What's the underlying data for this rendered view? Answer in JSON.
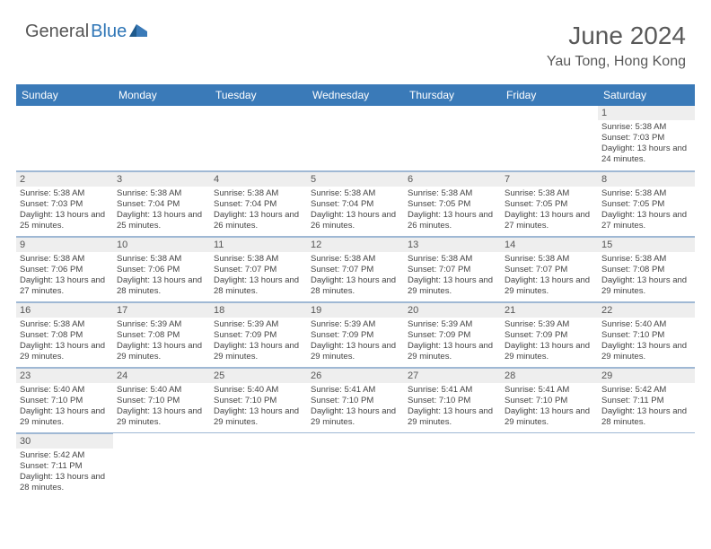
{
  "brand": {
    "part1": "General",
    "part2": "Blue"
  },
  "title": {
    "month": "June 2024",
    "location": "Yau Tong, Hong Kong"
  },
  "colors": {
    "header_bg": "#3a7ab8",
    "header_text": "#ffffff",
    "daynum_bg": "#eeeeee",
    "text": "#444444",
    "title_color": "#595959",
    "row_border": "#9fb8d4"
  },
  "day_headers": [
    "Sunday",
    "Monday",
    "Tuesday",
    "Wednesday",
    "Thursday",
    "Friday",
    "Saturday"
  ],
  "weeks": [
    [
      null,
      null,
      null,
      null,
      null,
      null,
      {
        "num": "1",
        "sunrise": "Sunrise: 5:38 AM",
        "sunset": "Sunset: 7:03 PM",
        "daylight": "Daylight: 13 hours and 24 minutes."
      }
    ],
    [
      {
        "num": "2",
        "sunrise": "Sunrise: 5:38 AM",
        "sunset": "Sunset: 7:03 PM",
        "daylight": "Daylight: 13 hours and 25 minutes."
      },
      {
        "num": "3",
        "sunrise": "Sunrise: 5:38 AM",
        "sunset": "Sunset: 7:04 PM",
        "daylight": "Daylight: 13 hours and 25 minutes."
      },
      {
        "num": "4",
        "sunrise": "Sunrise: 5:38 AM",
        "sunset": "Sunset: 7:04 PM",
        "daylight": "Daylight: 13 hours and 26 minutes."
      },
      {
        "num": "5",
        "sunrise": "Sunrise: 5:38 AM",
        "sunset": "Sunset: 7:04 PM",
        "daylight": "Daylight: 13 hours and 26 minutes."
      },
      {
        "num": "6",
        "sunrise": "Sunrise: 5:38 AM",
        "sunset": "Sunset: 7:05 PM",
        "daylight": "Daylight: 13 hours and 26 minutes."
      },
      {
        "num": "7",
        "sunrise": "Sunrise: 5:38 AM",
        "sunset": "Sunset: 7:05 PM",
        "daylight": "Daylight: 13 hours and 27 minutes."
      },
      {
        "num": "8",
        "sunrise": "Sunrise: 5:38 AM",
        "sunset": "Sunset: 7:05 PM",
        "daylight": "Daylight: 13 hours and 27 minutes."
      }
    ],
    [
      {
        "num": "9",
        "sunrise": "Sunrise: 5:38 AM",
        "sunset": "Sunset: 7:06 PM",
        "daylight": "Daylight: 13 hours and 27 minutes."
      },
      {
        "num": "10",
        "sunrise": "Sunrise: 5:38 AM",
        "sunset": "Sunset: 7:06 PM",
        "daylight": "Daylight: 13 hours and 28 minutes."
      },
      {
        "num": "11",
        "sunrise": "Sunrise: 5:38 AM",
        "sunset": "Sunset: 7:07 PM",
        "daylight": "Daylight: 13 hours and 28 minutes."
      },
      {
        "num": "12",
        "sunrise": "Sunrise: 5:38 AM",
        "sunset": "Sunset: 7:07 PM",
        "daylight": "Daylight: 13 hours and 28 minutes."
      },
      {
        "num": "13",
        "sunrise": "Sunrise: 5:38 AM",
        "sunset": "Sunset: 7:07 PM",
        "daylight": "Daylight: 13 hours and 29 minutes."
      },
      {
        "num": "14",
        "sunrise": "Sunrise: 5:38 AM",
        "sunset": "Sunset: 7:07 PM",
        "daylight": "Daylight: 13 hours and 29 minutes."
      },
      {
        "num": "15",
        "sunrise": "Sunrise: 5:38 AM",
        "sunset": "Sunset: 7:08 PM",
        "daylight": "Daylight: 13 hours and 29 minutes."
      }
    ],
    [
      {
        "num": "16",
        "sunrise": "Sunrise: 5:38 AM",
        "sunset": "Sunset: 7:08 PM",
        "daylight": "Daylight: 13 hours and 29 minutes."
      },
      {
        "num": "17",
        "sunrise": "Sunrise: 5:39 AM",
        "sunset": "Sunset: 7:08 PM",
        "daylight": "Daylight: 13 hours and 29 minutes."
      },
      {
        "num": "18",
        "sunrise": "Sunrise: 5:39 AM",
        "sunset": "Sunset: 7:09 PM",
        "daylight": "Daylight: 13 hours and 29 minutes."
      },
      {
        "num": "19",
        "sunrise": "Sunrise: 5:39 AM",
        "sunset": "Sunset: 7:09 PM",
        "daylight": "Daylight: 13 hours and 29 minutes."
      },
      {
        "num": "20",
        "sunrise": "Sunrise: 5:39 AM",
        "sunset": "Sunset: 7:09 PM",
        "daylight": "Daylight: 13 hours and 29 minutes."
      },
      {
        "num": "21",
        "sunrise": "Sunrise: 5:39 AM",
        "sunset": "Sunset: 7:09 PM",
        "daylight": "Daylight: 13 hours and 29 minutes."
      },
      {
        "num": "22",
        "sunrise": "Sunrise: 5:40 AM",
        "sunset": "Sunset: 7:10 PM",
        "daylight": "Daylight: 13 hours and 29 minutes."
      }
    ],
    [
      {
        "num": "23",
        "sunrise": "Sunrise: 5:40 AM",
        "sunset": "Sunset: 7:10 PM",
        "daylight": "Daylight: 13 hours and 29 minutes."
      },
      {
        "num": "24",
        "sunrise": "Sunrise: 5:40 AM",
        "sunset": "Sunset: 7:10 PM",
        "daylight": "Daylight: 13 hours and 29 minutes."
      },
      {
        "num": "25",
        "sunrise": "Sunrise: 5:40 AM",
        "sunset": "Sunset: 7:10 PM",
        "daylight": "Daylight: 13 hours and 29 minutes."
      },
      {
        "num": "26",
        "sunrise": "Sunrise: 5:41 AM",
        "sunset": "Sunset: 7:10 PM",
        "daylight": "Daylight: 13 hours and 29 minutes."
      },
      {
        "num": "27",
        "sunrise": "Sunrise: 5:41 AM",
        "sunset": "Sunset: 7:10 PM",
        "daylight": "Daylight: 13 hours and 29 minutes."
      },
      {
        "num": "28",
        "sunrise": "Sunrise: 5:41 AM",
        "sunset": "Sunset: 7:10 PM",
        "daylight": "Daylight: 13 hours and 29 minutes."
      },
      {
        "num": "29",
        "sunrise": "Sunrise: 5:42 AM",
        "sunset": "Sunset: 7:11 PM",
        "daylight": "Daylight: 13 hours and 28 minutes."
      }
    ],
    [
      {
        "num": "30",
        "sunrise": "Sunrise: 5:42 AM",
        "sunset": "Sunset: 7:11 PM",
        "daylight": "Daylight: 13 hours and 28 minutes."
      },
      null,
      null,
      null,
      null,
      null,
      null
    ]
  ]
}
